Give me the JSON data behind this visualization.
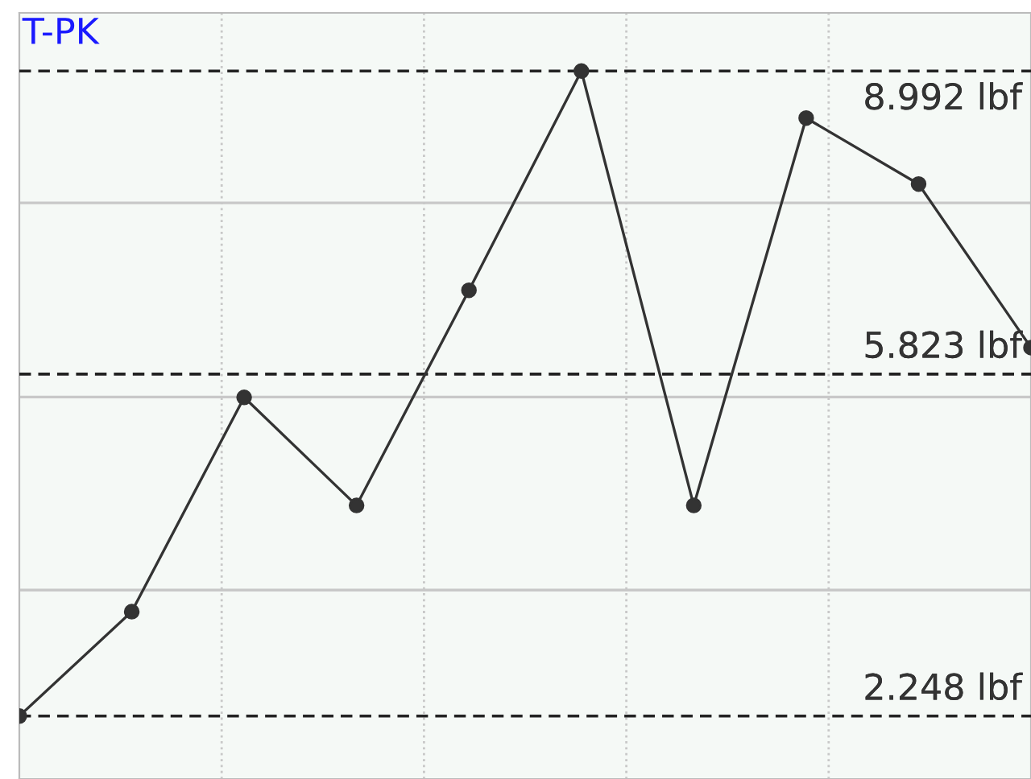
{
  "chart_data": {
    "type": "line",
    "title": "T-PK",
    "categories": [
      null,
      null,
      null,
      null,
      null,
      null,
      null,
      null,
      null,
      null
    ],
    "series": [
      {
        "color": "#333333",
        "values": [
          2.248,
          3.34,
          5.58,
          4.45,
          6.7,
          8.992,
          4.45,
          8.5,
          7.81,
          6.1
        ]
      }
    ],
    "ylim": [
      1.59,
      9.6
    ],
    "yticks": [
      {
        "value": 3.565,
        "label": null
      },
      {
        "value": 5.583,
        "label": null
      },
      {
        "value": 7.613,
        "label": null
      }
    ],
    "ref_lines": [
      {
        "axis": "y",
        "value": 8.992,
        "label": "8.992 lbf",
        "color": "#222222",
        "line_style": "dashed"
      },
      {
        "axis": "y",
        "value": 5.823,
        "label": "5.823 lbf",
        "color": "#222222",
        "line_style": "dashed"
      },
      {
        "axis": "y",
        "value": 2.248,
        "label": "2.248 lbf",
        "color": "#222222",
        "line_style": "dashed"
      }
    ],
    "grid": true,
    "marker": "circle",
    "line_style": "solid"
  }
}
